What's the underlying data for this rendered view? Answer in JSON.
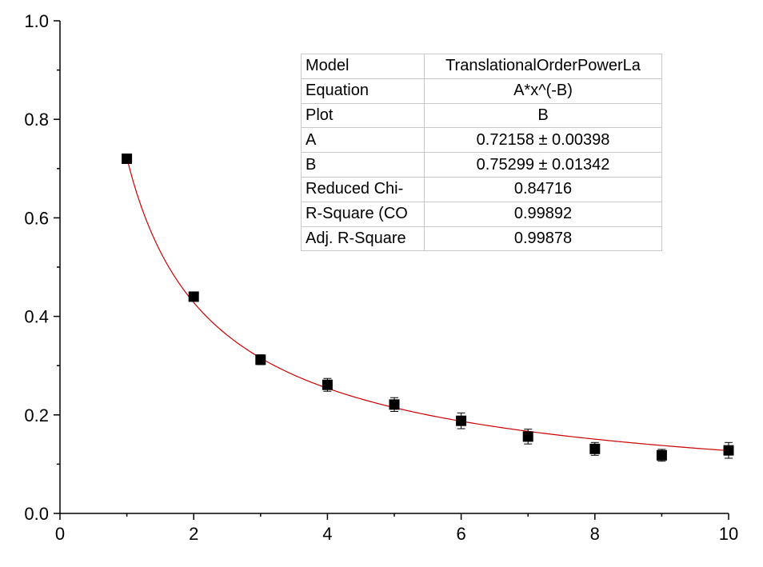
{
  "chart_data": {
    "type": "scatter",
    "x_ticks": [
      "0",
      "2",
      "4",
      "6",
      "8",
      "10"
    ],
    "y_ticks": [
      "0.0",
      "0.2",
      "0.4",
      "0.6",
      "0.8",
      "1.0"
    ],
    "xlim": [
      0,
      10
    ],
    "ylim": [
      0,
      1
    ],
    "grid": false,
    "series": [
      {
        "marker": "filled-square",
        "color": "#000000",
        "x": [
          1,
          2,
          3,
          4,
          5,
          6,
          7,
          8,
          9,
          10
        ],
        "y": [
          0.72,
          0.44,
          0.312,
          0.261,
          0.221,
          0.188,
          0.156,
          0.131,
          0.118,
          0.128
        ],
        "error": [
          0.007,
          0.009,
          0.01,
          0.013,
          0.014,
          0.016,
          0.015,
          0.013,
          0.012,
          0.016
        ]
      }
    ],
    "fit": {
      "color": "#cc0000",
      "equation": "A*x^(-B)",
      "A": 0.72158,
      "B": 0.75299,
      "x_range": [
        1,
        10
      ]
    },
    "fit_table": [
      {
        "key": "Model",
        "value": "TranslationalOrderPowerLa"
      },
      {
        "key": "Equation",
        "value": "A*x^(-B)"
      },
      {
        "key": "Plot",
        "value": "B"
      },
      {
        "key": "A",
        "value": "0.72158 ± 0.00398"
      },
      {
        "key": "B",
        "value": "0.75299 ± 0.01342"
      },
      {
        "key": "Reduced Chi-",
        "value": "0.84716"
      },
      {
        "key": "R-Square (CO",
        "value": "0.99892"
      },
      {
        "key": "Adj. R-Square",
        "value": "0.99878"
      }
    ]
  }
}
